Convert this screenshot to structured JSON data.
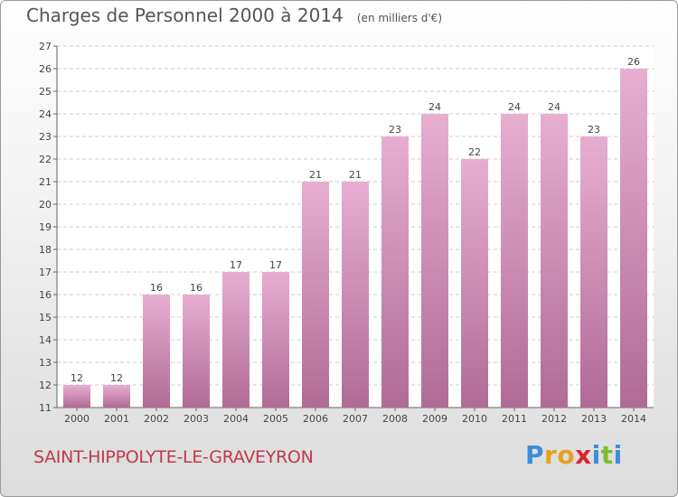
{
  "header": {
    "title": "Charges de Personnel 2000 à 2014",
    "subtitle": "(en milliers d'€)"
  },
  "commune": "SAINT-HIPPOLYTE-LE-GRAVEYRON",
  "logo": {
    "text": "Proxiti",
    "letter_colors": [
      "#3a8fd6",
      "#e8a020",
      "#e8a020",
      "#d8282f",
      "#3a8fd6",
      "#7cbf2a",
      "#3a8fd6"
    ]
  },
  "colors": {
    "bar_top": "#e7aed0",
    "bar_bottom": "#b06b95",
    "grid": "#cccccc"
  },
  "chart_data": {
    "type": "bar",
    "categories": [
      "2000",
      "2001",
      "2002",
      "2003",
      "2004",
      "2005",
      "2006",
      "2007",
      "2008",
      "2009",
      "2010",
      "2011",
      "2012",
      "2013",
      "2014"
    ],
    "values": [
      12,
      12,
      16,
      16,
      17,
      17,
      21,
      21,
      23,
      24,
      22,
      24,
      24,
      23,
      26
    ],
    "title": "Charges de Personnel 2000 à 2014",
    "subtitle": "(en milliers d'€)",
    "xlabel": "",
    "ylabel": "",
    "ylim": [
      11,
      27
    ],
    "yticks": [
      11,
      12,
      13,
      14,
      15,
      16,
      17,
      18,
      19,
      20,
      21,
      22,
      23,
      24,
      25,
      26,
      27
    ],
    "grid": true
  }
}
